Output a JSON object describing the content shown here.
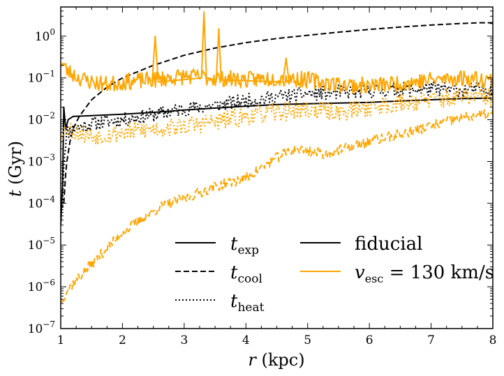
{
  "chart_data": {
    "type": "line",
    "xlabel": {
      "var": "r",
      "unit": "(kpc)"
    },
    "ylabel": {
      "var": "t",
      "unit": "(Gyr)"
    },
    "xlim": [
      1,
      8
    ],
    "ylim": [
      1e-07,
      5
    ],
    "yscale": "log",
    "grid": false,
    "x_ticks": [
      1,
      2,
      3,
      4,
      5,
      6,
      7,
      8
    ],
    "x_tick_labels": [
      "1",
      "2",
      "3",
      "4",
      "5",
      "6",
      "7",
      "8"
    ],
    "y_ticks": [
      1e-07,
      1e-06,
      1e-05,
      0.0001,
      0.001,
      0.01,
      0.1,
      1
    ],
    "y_tick_labels": [
      {
        "base": "10",
        "exp": "−7"
      },
      {
        "base": "10",
        "exp": "−6"
      },
      {
        "base": "10",
        "exp": "−5"
      },
      {
        "base": "10",
        "exp": "−4"
      },
      {
        "base": "10",
        "exp": "−3"
      },
      {
        "base": "10",
        "exp": "−2"
      },
      {
        "base": "10",
        "exp": "−1"
      },
      {
        "base": "10",
        "exp": "0"
      }
    ],
    "legend_styles": [
      {
        "symbol": "t",
        "sub": "exp",
        "dash": "solid"
      },
      {
        "symbol": "t",
        "sub": "cool",
        "dash": "dashed"
      },
      {
        "symbol": "t",
        "sub": "heat",
        "dash": "dotted"
      }
    ],
    "legend_models": [
      {
        "label": "fiducial",
        "color": "#000000"
      },
      {
        "label_var": "v",
        "label_sub": "esc",
        "label_rest": " = 130 km/s",
        "color": "#FFA500"
      }
    ],
    "legend_position": "bottom-center",
    "series": [
      {
        "name": "t_exp fiducial",
        "color": "#000000",
        "dash": "solid",
        "x": [
          1.0,
          1.03,
          1.05,
          1.08,
          1.12,
          1.2,
          1.5,
          2.0,
          2.5,
          3.0,
          3.5,
          4.0,
          4.5,
          5.0,
          5.5,
          6.0,
          6.5,
          7.0,
          7.5,
          8.0
        ],
        "y": [
          3e-05,
          0.0003,
          0.02,
          0.006,
          0.01,
          0.012,
          0.0125,
          0.0135,
          0.015,
          0.017,
          0.019,
          0.021,
          0.023,
          0.024,
          0.025,
          0.026,
          0.028,
          0.03,
          0.032,
          0.033
        ]
      },
      {
        "name": "t_cool fiducial",
        "color": "#000000",
        "dash": "dashed",
        "x": [
          1.05,
          1.08,
          1.1,
          1.15,
          1.2,
          1.3,
          1.5,
          1.75,
          2.0,
          2.5,
          3.0,
          3.5,
          4.0,
          4.5,
          5.0,
          5.5,
          6.0,
          6.5,
          7.0,
          7.5,
          7.8,
          8.0
        ],
        "y": [
          0.0001,
          0.0005,
          0.001,
          0.003,
          0.006,
          0.012,
          0.03,
          0.06,
          0.1,
          0.2,
          0.35,
          0.52,
          0.7,
          0.88,
          1.05,
          1.25,
          1.45,
          1.65,
          1.85,
          2.02,
          2.1,
          2.1
        ]
      },
      {
        "name": "t_heat fiducial",
        "color": "#000000",
        "dash": "dotted",
        "noise": 0.35,
        "seed": 11,
        "x": [
          1.03,
          1.05,
          1.08,
          1.1,
          1.2,
          1.5,
          2.0,
          2.5,
          3.0,
          3.5,
          4.0,
          4.5,
          5.0,
          5.5,
          6.0,
          6.5,
          7.0,
          7.5,
          8.0
        ],
        "y": [
          0.0001,
          0.001,
          0.003,
          0.005,
          0.006,
          0.008,
          0.01,
          0.013,
          0.018,
          0.022,
          0.028,
          0.035,
          0.042,
          0.045,
          0.048,
          0.052,
          0.055,
          0.05,
          0.055
        ]
      },
      {
        "name": "t_exp v_esc=130",
        "color": "#FFA500",
        "dash": "solid",
        "noise": 0.4,
        "seed": 23,
        "x": [
          1.0,
          1.1,
          1.3,
          1.5,
          1.75,
          2.0,
          2.5,
          3.0,
          3.5,
          4.0,
          4.5,
          5.0,
          5.5,
          6.0,
          6.5,
          7.0,
          7.5,
          8.0
        ],
        "y": [
          0.25,
          0.15,
          0.1,
          0.08,
          0.07,
          0.08,
          0.09,
          0.11,
          0.1,
          0.09,
          0.1,
          0.09,
          0.07,
          0.065,
          0.075,
          0.09,
          0.1,
          0.09
        ]
      },
      {
        "name": "t_exp v_esc=130 spikes",
        "color": "#FFA500",
        "dash": "solid",
        "x": [
          2.48,
          2.53,
          2.58,
          3.28,
          3.32,
          3.36,
          3.52,
          3.56,
          3.6,
          4.6,
          4.65,
          4.7
        ],
        "y": [
          0.08,
          1.0,
          0.08,
          0.1,
          3.8,
          0.1,
          0.09,
          1.5,
          0.09,
          0.08,
          0.3,
          0.08
        ]
      },
      {
        "name": "t_cool v_esc=130",
        "color": "#FFA500",
        "dash": "dashed",
        "noise": 0.25,
        "seed": 37,
        "x": [
          1.0,
          1.1,
          1.2,
          1.4,
          1.6,
          1.8,
          2.0,
          2.3,
          2.6,
          3.0,
          3.5,
          4.0,
          4.3,
          4.6,
          4.8,
          5.0,
          5.3,
          5.6,
          6.0,
          6.5,
          7.0,
          7.5,
          8.0
        ],
        "y": [
          4.5e-07,
          8e-07,
          1.2e-06,
          2.5e-06,
          5e-06,
          1e-05,
          2e-05,
          4e-05,
          8e-05,
          0.00013,
          0.00025,
          0.0004,
          0.0008,
          0.0015,
          0.002,
          0.0018,
          0.0015,
          0.002,
          0.003,
          0.0045,
          0.007,
          0.011,
          0.014
        ]
      },
      {
        "name": "t_heat v_esc=130",
        "color": "#FFA500",
        "dash": "dotted",
        "noise": 0.45,
        "seed": 53,
        "x": [
          1.0,
          1.1,
          1.3,
          1.5,
          2.0,
          2.5,
          3.0,
          3.5,
          4.0,
          4.5,
          5.0,
          5.5,
          6.0,
          6.5,
          7.0,
          7.5,
          8.0
        ],
        "y": [
          0.005,
          0.006,
          0.005,
          0.004,
          0.005,
          0.006,
          0.007,
          0.009,
          0.012,
          0.015,
          0.018,
          0.015,
          0.02,
          0.025,
          0.03,
          0.035,
          0.035
        ]
      }
    ]
  }
}
